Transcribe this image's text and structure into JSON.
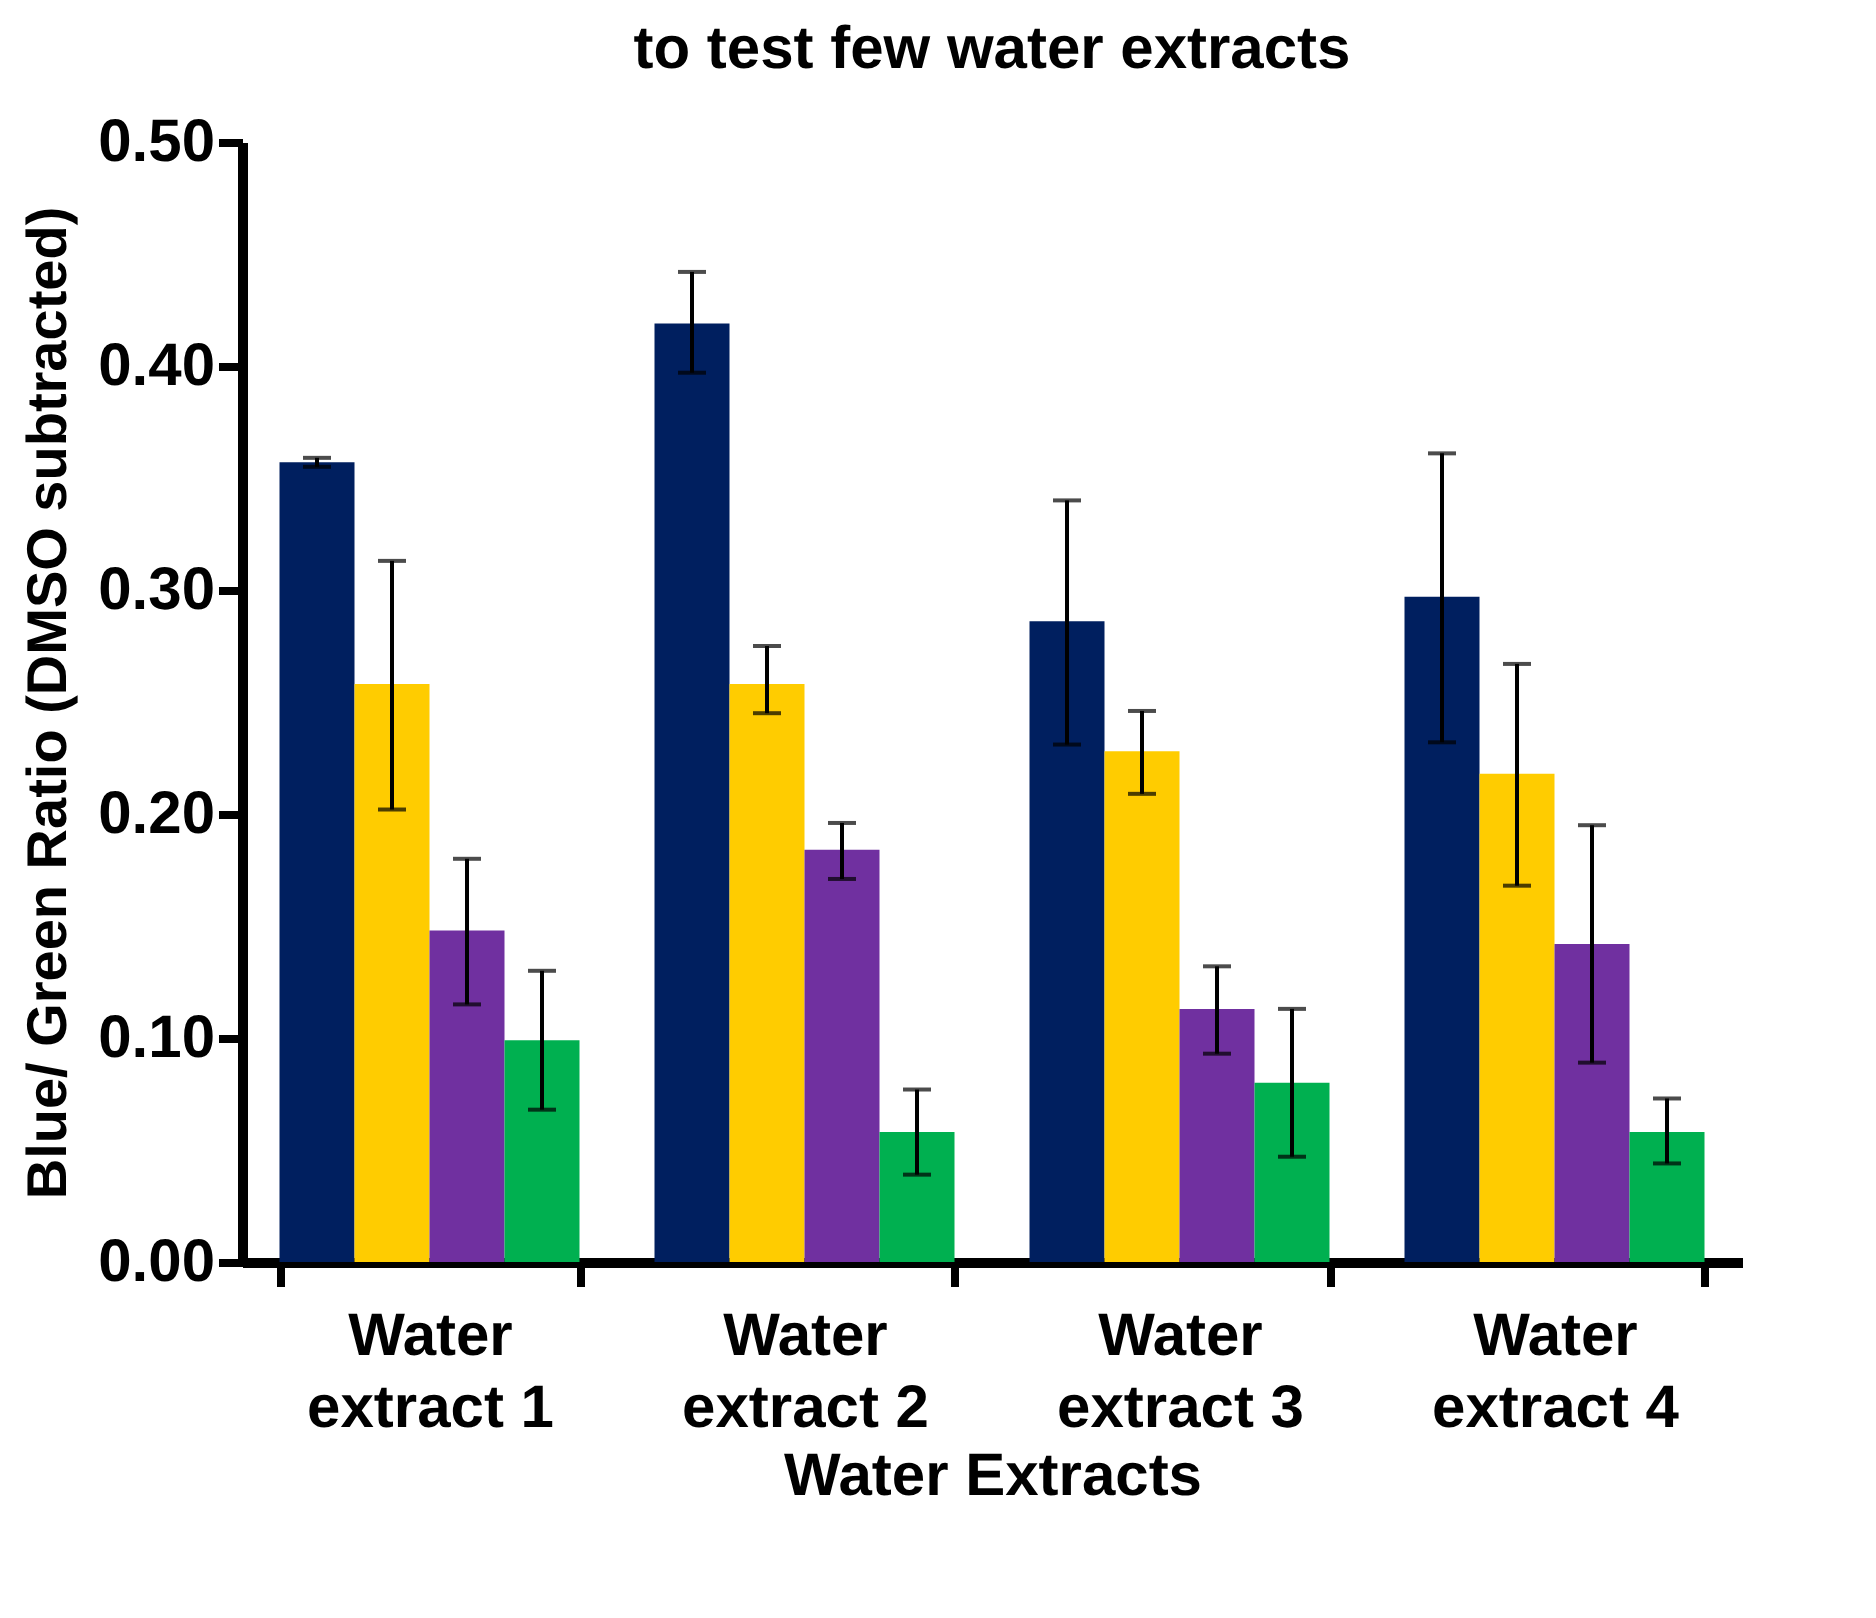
{
  "chart_data": {
    "type": "bar",
    "title": "to test few water extracts",
    "xlabel": "Water Extracts",
    "ylabel": "Blue/ Green Ratio (DMSO subtracted)",
    "categories": [
      "Water extract 1",
      "Water extract 2",
      "Water extract 3",
      "Water extract 4"
    ],
    "series": [
      {
        "color": "#001f5f",
        "values": [
          0.357,
          0.419,
          0.286,
          0.297
        ],
        "errors": [
          [
            0.355,
            0.359
          ],
          [
            0.397,
            0.442
          ],
          [
            0.231,
            0.34
          ],
          [
            0.232,
            0.361
          ]
        ]
      },
      {
        "color": "#ffcc00",
        "values": [
          0.258,
          0.258,
          0.228,
          0.218
        ],
        "errors": [
          [
            0.202,
            0.313
          ],
          [
            0.245,
            0.275
          ],
          [
            0.209,
            0.246
          ],
          [
            0.168,
            0.267
          ]
        ]
      },
      {
        "color": "#7030a0",
        "values": [
          0.148,
          0.184,
          0.113,
          0.142
        ],
        "errors": [
          [
            0.115,
            0.18
          ],
          [
            0.171,
            0.196
          ],
          [
            0.093,
            0.132
          ],
          [
            0.089,
            0.195
          ]
        ]
      },
      {
        "color": "#00b050",
        "values": [
          0.099,
          0.058,
          0.08,
          0.058
        ],
        "errors": [
          [
            0.068,
            0.13
          ],
          [
            0.039,
            0.077
          ],
          [
            0.047,
            0.113
          ],
          [
            0.044,
            0.073
          ]
        ]
      }
    ],
    "ylim": [
      0,
      0.5
    ],
    "yticks": [
      {
        "value": 0,
        "label": "0.00"
      },
      {
        "value": 0.1,
        "label": "0.10"
      },
      {
        "value": 0.2,
        "label": "0.20"
      },
      {
        "value": 0.3,
        "label": "0.30"
      },
      {
        "value": 0.4,
        "label": "0.40"
      },
      {
        "value": 0.5,
        "label": "0.50"
      }
    ],
    "grid": false
  }
}
